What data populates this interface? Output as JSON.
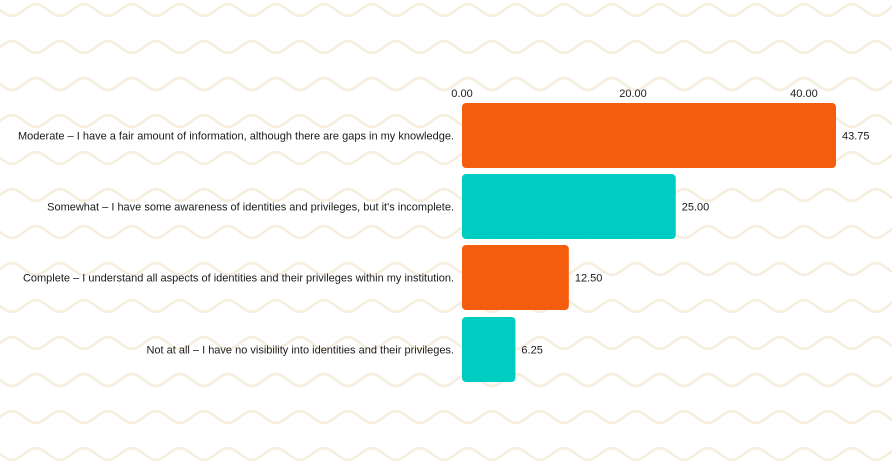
{
  "colors": {
    "background": "#ffffff",
    "wave": "#f6eddd",
    "orange": "#f45d0e",
    "teal": "#00cdc2",
    "text": "#1a1a1a"
  },
  "chart_data": {
    "type": "bar",
    "orientation": "horizontal",
    "title": "",
    "xlabel": "",
    "ylabel": "",
    "xlim": [
      0,
      45
    ],
    "ticks": [
      {
        "value": 0,
        "label": "0.00"
      },
      {
        "value": 20,
        "label": "20.00"
      },
      {
        "value": 40,
        "label": "40.00"
      }
    ],
    "grid": false,
    "legend": "none",
    "categories": [
      "Moderate – I have a fair amount of information, although there are gaps in my knowledge.",
      "Somewhat – I have some awareness of identities and privileges, but it's incomplete.",
      "Complete – I understand all aspects of identities and their privileges within my institution.",
      "Not at all – I have no visibility into identities and their privileges."
    ],
    "values": [
      43.75,
      25.0,
      12.5,
      6.25
    ],
    "value_labels": [
      "43.75",
      "25.00",
      "12.50",
      "6.25"
    ],
    "bar_colors": [
      "#f45d0e",
      "#00cdc2",
      "#f45d0e",
      "#00cdc2"
    ]
  }
}
